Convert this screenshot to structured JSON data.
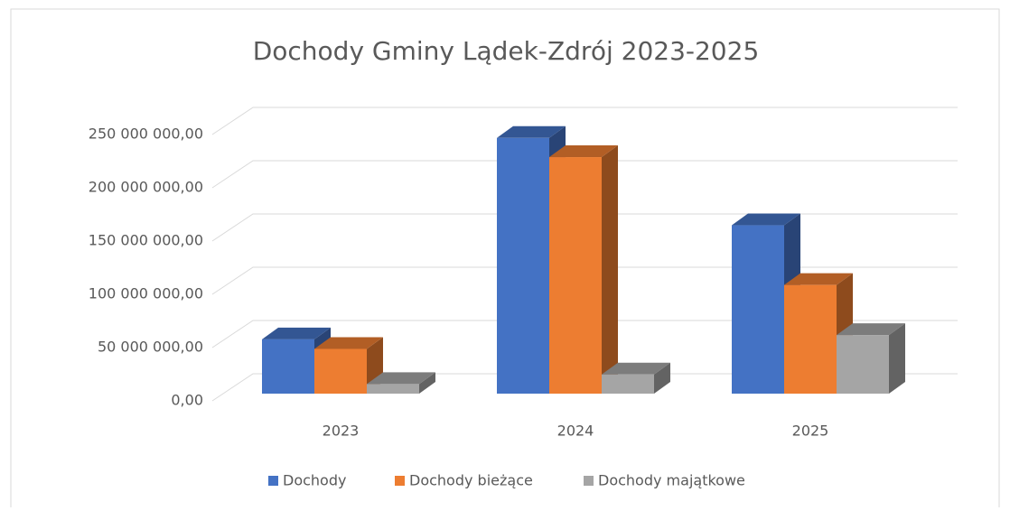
{
  "chart_data": {
    "type": "bar3d",
    "title": "Dochody Gminy Lądek-Zdrój 2023-2025",
    "categories": [
      "2023",
      "2024",
      "2025"
    ],
    "series": [
      {
        "name": "Dochody",
        "color": "#4472c4",
        "values": [
          51000000,
          240000000,
          158000000
        ]
      },
      {
        "name": "Dochody bieżące",
        "color": "#ed7d31",
        "values": [
          42000000,
          222000000,
          102000000
        ]
      },
      {
        "name": "Dochody majątkowe",
        "color": "#a5a5a5",
        "values": [
          9000000,
          18000000,
          55000000
        ]
      }
    ],
    "ylim": [
      0,
      250000000
    ],
    "yticks": [
      {
        "value": 0,
        "label": "0,00"
      },
      {
        "value": 50000000,
        "label": "50 000 000,00"
      },
      {
        "value": 100000000,
        "label": "100 000 000,00"
      },
      {
        "value": 150000000,
        "label": "150 000 000,00"
      },
      {
        "value": 200000000,
        "label": "200 000 000,00"
      },
      {
        "value": 250000000,
        "label": "250 000 000,00"
      }
    ],
    "grid": true,
    "legend": "bottom"
  }
}
